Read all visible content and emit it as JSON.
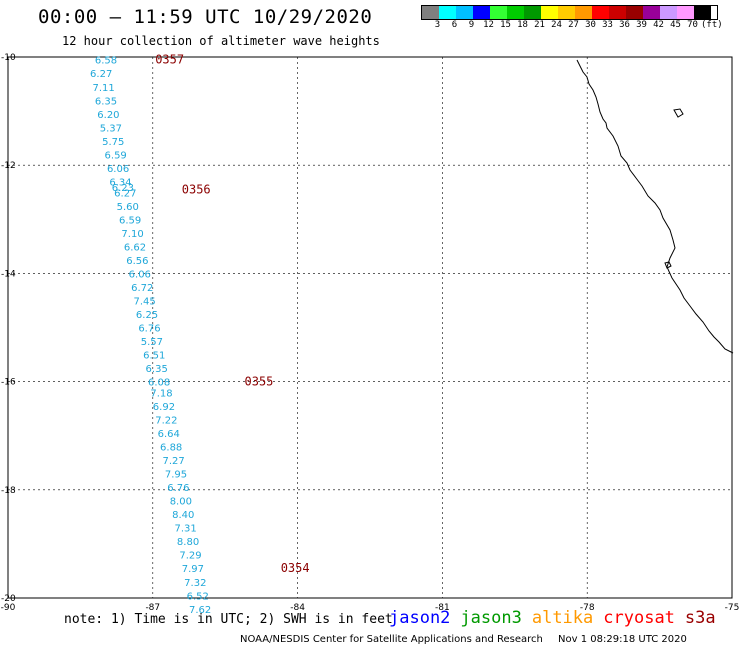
{
  "header": {
    "title": "00:00 – 11:59 UTC 10/29/2020",
    "subtitle": "12 hour collection of altimeter wave heights"
  },
  "legend": {
    "colors": [
      "#7f7f7f",
      "#00ffff",
      "#00bfff",
      "#0000ff",
      "#33ff33",
      "#00cc00",
      "#009900",
      "#ffff00",
      "#ffcc00",
      "#ff9900",
      "#ff0000",
      "#cc0000",
      "#990000",
      "#990099",
      "#cc99ff",
      "#ff99ff",
      "#000000"
    ],
    "labels": [
      "3",
      "6",
      "9",
      "12",
      "15",
      "18",
      "21",
      "24",
      "27",
      "30",
      "33",
      "36",
      "39",
      "42",
      "45",
      "70"
    ],
    "unit": "(ft)"
  },
  "map": {
    "lon_range": [
      -90,
      -75
    ],
    "lat_range": [
      -20,
      -10
    ],
    "x_ticks": [
      "-90",
      "-87",
      "-84",
      "-81",
      "-78",
      "-75"
    ],
    "y_ticks": [
      "-10",
      "-12",
      "-14",
      "-16",
      "-18",
      "-20"
    ],
    "track": [
      {
        "lon": -88.2,
        "lat": -10.05,
        "value": "6.58"
      },
      {
        "lon": -88.3,
        "lat": -10.3,
        "value": "6.27"
      },
      {
        "lon": -88.25,
        "lat": -10.55,
        "value": "7.11"
      },
      {
        "lon": -88.2,
        "lat": -10.8,
        "value": "6.35"
      },
      {
        "lon": -88.15,
        "lat": -11.05,
        "value": "6.20"
      },
      {
        "lon": -88.1,
        "lat": -11.3,
        "value": "5.37"
      },
      {
        "lon": -88.05,
        "lat": -11.55,
        "value": "5.75"
      },
      {
        "lon": -88.0,
        "lat": -11.8,
        "value": "6.59"
      },
      {
        "lon": -87.95,
        "lat": -12.05,
        "value": "6.06"
      },
      {
        "lon": -87.9,
        "lat": -12.3,
        "value": "6.34"
      },
      {
        "lon": -87.85,
        "lat": -12.4,
        "value": "6.23"
      },
      {
        "lon": -87.8,
        "lat": -12.5,
        "value": "6.27"
      },
      {
        "lon": -87.75,
        "lat": -12.75,
        "value": "5.60"
      },
      {
        "lon": -87.7,
        "lat": -13.0,
        "value": "6.59"
      },
      {
        "lon": -87.65,
        "lat": -13.25,
        "value": "7.10"
      },
      {
        "lon": -87.6,
        "lat": -13.5,
        "value": "6.62"
      },
      {
        "lon": -87.55,
        "lat": -13.75,
        "value": "6.56"
      },
      {
        "lon": -87.5,
        "lat": -14.0,
        "value": "6.06"
      },
      {
        "lon": -87.45,
        "lat": -14.25,
        "value": "6.72"
      },
      {
        "lon": -87.4,
        "lat": -14.5,
        "value": "7.45"
      },
      {
        "lon": -87.35,
        "lat": -14.75,
        "value": "6.25"
      },
      {
        "lon": -87.3,
        "lat": -15.0,
        "value": "6.76"
      },
      {
        "lon": -87.25,
        "lat": -15.25,
        "value": "5.57"
      },
      {
        "lon": -87.2,
        "lat": -15.5,
        "value": "6.51"
      },
      {
        "lon": -87.15,
        "lat": -15.75,
        "value": "6.35"
      },
      {
        "lon": -87.1,
        "lat": -16.0,
        "value": "6.08"
      },
      {
        "lon": -87.05,
        "lat": -16.2,
        "value": "7.18"
      },
      {
        "lon": -87.0,
        "lat": -16.45,
        "value": "6.92"
      },
      {
        "lon": -86.95,
        "lat": -16.7,
        "value": "7.22"
      },
      {
        "lon": -86.9,
        "lat": -16.95,
        "value": "6.64"
      },
      {
        "lon": -86.85,
        "lat": -17.2,
        "value": "6.88"
      },
      {
        "lon": -86.8,
        "lat": -17.45,
        "value": "7.27"
      },
      {
        "lon": -86.75,
        "lat": -17.7,
        "value": "7.95"
      },
      {
        "lon": -86.7,
        "lat": -17.95,
        "value": "6.76"
      },
      {
        "lon": -86.65,
        "lat": -18.2,
        "value": "8.00"
      },
      {
        "lon": -86.6,
        "lat": -18.45,
        "value": "8.40"
      },
      {
        "lon": -86.55,
        "lat": -18.7,
        "value": "7.31"
      },
      {
        "lon": -86.5,
        "lat": -18.95,
        "value": "8.80"
      },
      {
        "lon": -86.45,
        "lat": -19.2,
        "value": "7.29"
      },
      {
        "lon": -86.4,
        "lat": -19.45,
        "value": "7.97"
      },
      {
        "lon": -86.35,
        "lat": -19.7,
        "value": "7.32"
      },
      {
        "lon": -86.3,
        "lat": -19.95,
        "value": "6.52"
      },
      {
        "lon": -86.25,
        "lat": -20.2,
        "value": "7.62"
      }
    ],
    "times": [
      {
        "lon": -86.95,
        "lat": -10.05,
        "label": "0357"
      },
      {
        "lon": -86.4,
        "lat": -12.45,
        "label": "0356"
      },
      {
        "lon": -85.1,
        "lat": -16.0,
        "label": "0355"
      },
      {
        "lon": -84.35,
        "lat": -19.45,
        "label": "0354"
      }
    ]
  },
  "footer": {
    "note": "note: 1) Time is in UTC; 2) SWH is in feet",
    "missions": [
      {
        "name": "jason2",
        "color": "#0000ff"
      },
      {
        "name": "jason3",
        "color": "#009900"
      },
      {
        "name": "altika",
        "color": "#ff9900"
      },
      {
        "name": "cryosat",
        "color": "#ff0000"
      },
      {
        "name": "s3a",
        "color": "#990000"
      }
    ],
    "credit": "NOAA/NESDIS Center for Satellite Applications and Research",
    "timestamp": "Nov  1 08:29:18 UTC 2020"
  }
}
